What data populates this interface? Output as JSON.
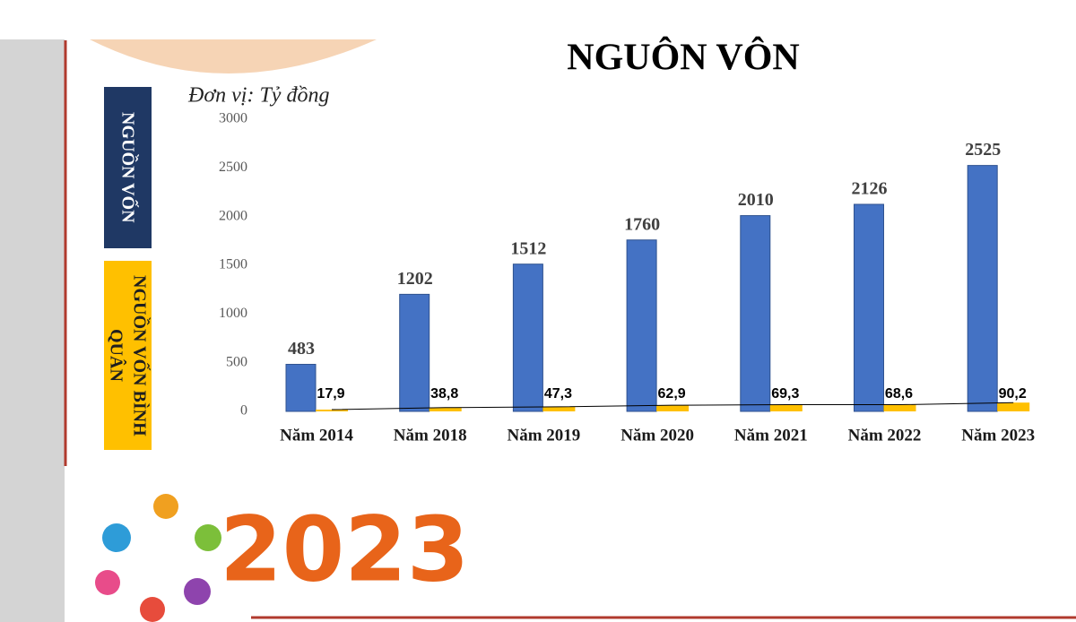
{
  "chart_data": {
    "type": "bar",
    "title": "NGUÔN VÔN",
    "subtitle": "Đơn vị: Tỷ đồng",
    "categories": [
      "Năm 2014",
      "Năm 2018",
      "Năm 2019",
      "Năm 2020",
      "Năm 2021",
      "Năm 2022",
      "Năm 2023"
    ],
    "series": [
      {
        "name": "NGUỒN VỐN",
        "color": "#4472c4",
        "values": [
          483,
          1202,
          1512,
          1760,
          2010,
          2126,
          2525
        ]
      },
      {
        "name": "NGUỒN VỐN BÌNH QUÂN",
        "color": "#ffc000",
        "values": [
          17.9,
          38.8,
          47.3,
          62.9,
          69.3,
          68.6,
          90.2
        ],
        "value_labels": [
          "17,9",
          "38,8",
          "47,3",
          "62,9",
          "69,3",
          "68,6",
          "90,2"
        ]
      }
    ],
    "ylim": [
      0,
      3000
    ],
    "yticks": [
      0,
      500,
      1000,
      1500,
      2000,
      2500,
      3000
    ],
    "grid": false
  },
  "decor": {
    "logo_text": "2023"
  }
}
